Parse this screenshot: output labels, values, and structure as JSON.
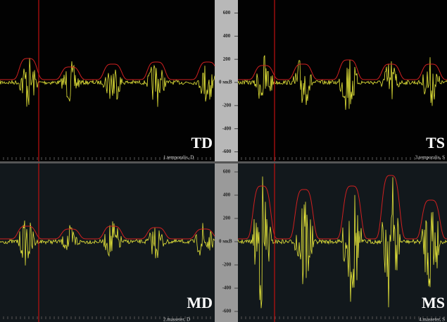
{
  "scale_ticks": [
    600,
    400,
    200,
    {
      "value": 0,
      "label": "0 мкВ"
    },
    -200,
    -400,
    -600
  ],
  "panels": [
    {
      "label": "TD",
      "channel": "1.temporalis, D"
    },
    {
      "label": "TS",
      "channel": "3.temporalis, S"
    },
    {
      "label": "MD",
      "channel": "2.masseter, D"
    },
    {
      "label": "MS",
      "channel": "4.masseter, S"
    }
  ]
}
